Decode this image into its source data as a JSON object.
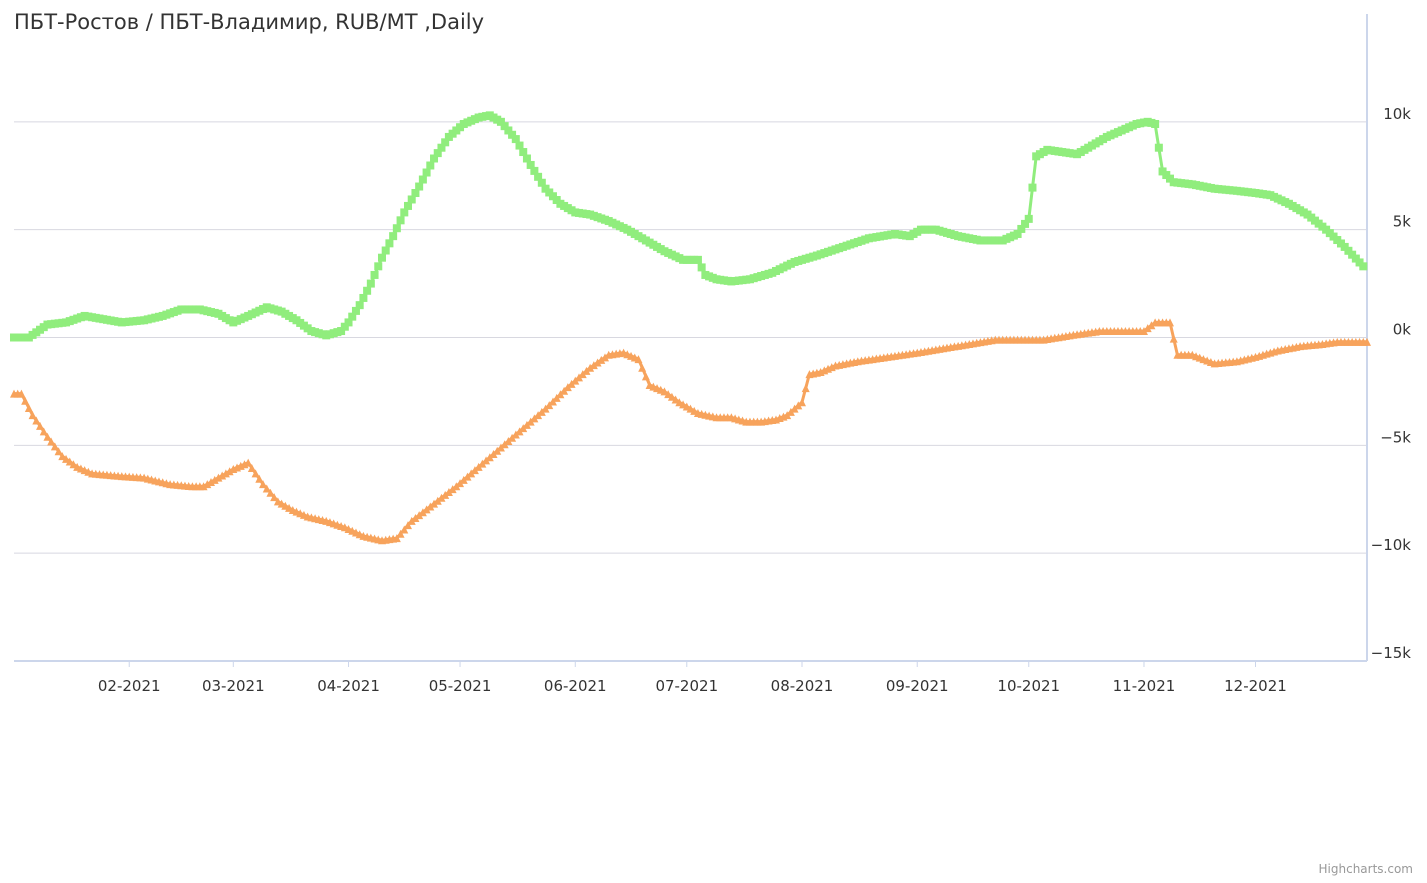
{
  "title": "ПБТ-Ростов / ПБТ-Владимир, RUB/MT ,Daily",
  "credits": "Highcharts.com",
  "colors": {
    "price": "#7cb5ec",
    "upper_band": "#90ed7d",
    "lower_band": "#f7a35c",
    "moving_average": "#434348",
    "grid": "#d8d8e0",
    "axis_line": "#ccd6eb",
    "text": "#333333"
  },
  "chart_data": {
    "type": "line",
    "title": "ПБТ-Ростов / ПБТ-Владимир, RUB/MT ,Daily",
    "xlabel": "",
    "ylabel": "",
    "x_range": [
      "2021-01-01",
      "2021-12-31"
    ],
    "x_ticks": [
      "02-2021",
      "03-2021",
      "04-2021",
      "05-2021",
      "06-2021",
      "07-2021",
      "08-2021",
      "09-2021",
      "10-2021",
      "11-2021",
      "12-2021"
    ],
    "ylim": [
      -15000,
      15000
    ],
    "y_ticks": [
      -15000,
      -10000,
      -5000,
      0,
      5000,
      10000
    ],
    "y_tick_labels": [
      "−15k",
      "−10k",
      "−5k",
      "0k",
      "5k",
      "10k"
    ],
    "y_axis_side": "right",
    "grid": true,
    "legend": "none",
    "series": [
      {
        "key": "upper",
        "marker": "square",
        "points": [
          [
            "2021-01-01",
            0
          ],
          [
            "2021-01-05",
            0
          ],
          [
            "2021-01-10",
            600
          ],
          [
            "2021-01-15",
            700
          ],
          [
            "2021-01-20",
            1000
          ],
          [
            "2021-01-25",
            850
          ],
          [
            "2021-01-30",
            700
          ],
          [
            "2021-02-05",
            800
          ],
          [
            "2021-02-10",
            1000
          ],
          [
            "2021-02-15",
            1300
          ],
          [
            "2021-02-20",
            1300
          ],
          [
            "2021-02-25",
            1100
          ],
          [
            "2021-03-01",
            700
          ],
          [
            "2021-03-05",
            1000
          ],
          [
            "2021-03-10",
            1400
          ],
          [
            "2021-03-14",
            1200
          ],
          [
            "2021-03-18",
            800
          ],
          [
            "2021-03-22",
            300
          ],
          [
            "2021-03-26",
            100
          ],
          [
            "2021-03-30",
            300
          ],
          [
            "2021-04-01",
            700
          ],
          [
            "2021-04-04",
            1500
          ],
          [
            "2021-04-07",
            2500
          ],
          [
            "2021-04-10",
            3700
          ],
          [
            "2021-04-13",
            4700
          ],
          [
            "2021-04-16",
            5800
          ],
          [
            "2021-04-20",
            7000
          ],
          [
            "2021-04-24",
            8300
          ],
          [
            "2021-04-28",
            9300
          ],
          [
            "2021-05-02",
            9900
          ],
          [
            "2021-05-06",
            10200
          ],
          [
            "2021-05-09",
            10300
          ],
          [
            "2021-05-12",
            10000
          ],
          [
            "2021-05-16",
            9200
          ],
          [
            "2021-05-20",
            8000
          ],
          [
            "2021-05-24",
            6900
          ],
          [
            "2021-05-28",
            6200
          ],
          [
            "2021-06-01",
            5800
          ],
          [
            "2021-06-05",
            5700
          ],
          [
            "2021-06-10",
            5400
          ],
          [
            "2021-06-15",
            5000
          ],
          [
            "2021-06-20",
            4500
          ],
          [
            "2021-06-25",
            4000
          ],
          [
            "2021-06-30",
            3600
          ],
          [
            "2021-07-04",
            3600
          ],
          [
            "2021-07-06",
            2900
          ],
          [
            "2021-07-09",
            2700
          ],
          [
            "2021-07-13",
            2600
          ],
          [
            "2021-07-18",
            2700
          ],
          [
            "2021-07-24",
            3000
          ],
          [
            "2021-07-30",
            3500
          ],
          [
            "2021-08-05",
            3800
          ],
          [
            "2021-08-12",
            4200
          ],
          [
            "2021-08-19",
            4600
          ],
          [
            "2021-08-26",
            4800
          ],
          [
            "2021-08-30",
            4700
          ],
          [
            "2021-09-02",
            5000
          ],
          [
            "2021-09-06",
            5000
          ],
          [
            "2021-09-12",
            4700
          ],
          [
            "2021-09-18",
            4500
          ],
          [
            "2021-09-24",
            4500
          ],
          [
            "2021-09-28",
            4800
          ],
          [
            "2021-10-01",
            5500
          ],
          [
            "2021-10-03",
            8400
          ],
          [
            "2021-10-06",
            8700
          ],
          [
            "2021-10-10",
            8600
          ],
          [
            "2021-10-14",
            8500
          ],
          [
            "2021-10-18",
            8900
          ],
          [
            "2021-10-22",
            9300
          ],
          [
            "2021-10-26",
            9600
          ],
          [
            "2021-10-30",
            9900
          ],
          [
            "2021-11-02",
            10000
          ],
          [
            "2021-11-04",
            9900
          ],
          [
            "2021-11-06",
            7700
          ],
          [
            "2021-11-09",
            7200
          ],
          [
            "2021-11-14",
            7100
          ],
          [
            "2021-11-20",
            6900
          ],
          [
            "2021-11-26",
            6800
          ],
          [
            "2021-12-01",
            6700
          ],
          [
            "2021-12-05",
            6600
          ],
          [
            "2021-12-10",
            6200
          ],
          [
            "2021-12-15",
            5700
          ],
          [
            "2021-12-20",
            5000
          ],
          [
            "2021-12-25",
            4200
          ],
          [
            "2021-12-30",
            3300
          ]
        ]
      },
      {
        "key": "lower",
        "marker": "triangle",
        "points": [
          [
            "2021-01-01",
            -2600
          ],
          [
            "2021-01-03",
            -2600
          ],
          [
            "2021-01-06",
            -3600
          ],
          [
            "2021-01-10",
            -4600
          ],
          [
            "2021-01-14",
            -5500
          ],
          [
            "2021-01-18",
            -6000
          ],
          [
            "2021-01-22",
            -6300
          ],
          [
            "2021-01-28",
            -6400
          ],
          [
            "2021-02-05",
            -6500
          ],
          [
            "2021-02-12",
            -6800
          ],
          [
            "2021-02-18",
            -6900
          ],
          [
            "2021-02-21",
            -6900
          ],
          [
            "2021-02-25",
            -6500
          ],
          [
            "2021-03-01",
            -6100
          ],
          [
            "2021-03-05",
            -5800
          ],
          [
            "2021-03-09",
            -6800
          ],
          [
            "2021-03-13",
            -7600
          ],
          [
            "2021-03-17",
            -8000
          ],
          [
            "2021-03-21",
            -8300
          ],
          [
            "2021-03-26",
            -8500
          ],
          [
            "2021-03-31",
            -8800
          ],
          [
            "2021-04-05",
            -9200
          ],
          [
            "2021-04-10",
            -9400
          ],
          [
            "2021-04-14",
            -9300
          ],
          [
            "2021-04-18",
            -8500
          ],
          [
            "2021-04-24",
            -7700
          ],
          [
            "2021-04-30",
            -6900
          ],
          [
            "2021-05-06",
            -6000
          ],
          [
            "2021-05-12",
            -5100
          ],
          [
            "2021-05-18",
            -4200
          ],
          [
            "2021-05-24",
            -3300
          ],
          [
            "2021-05-30",
            -2300
          ],
          [
            "2021-06-05",
            -1400
          ],
          [
            "2021-06-10",
            -800
          ],
          [
            "2021-06-14",
            -700
          ],
          [
            "2021-06-18",
            -1000
          ],
          [
            "2021-06-21",
            -2200
          ],
          [
            "2021-06-25",
            -2500
          ],
          [
            "2021-06-29",
            -3000
          ],
          [
            "2021-07-04",
            -3500
          ],
          [
            "2021-07-09",
            -3700
          ],
          [
            "2021-07-13",
            -3700
          ],
          [
            "2021-07-17",
            -3900
          ],
          [
            "2021-07-21",
            -3900
          ],
          [
            "2021-07-25",
            -3800
          ],
          [
            "2021-07-28",
            -3600
          ],
          [
            "2021-08-01",
            -3000
          ],
          [
            "2021-08-03",
            -1700
          ],
          [
            "2021-08-06",
            -1600
          ],
          [
            "2021-08-10",
            -1300
          ],
          [
            "2021-08-16",
            -1100
          ],
          [
            "2021-08-24",
            -900
          ],
          [
            "2021-09-01",
            -700
          ],
          [
            "2021-09-08",
            -500
          ],
          [
            "2021-09-15",
            -300
          ],
          [
            "2021-09-22",
            -100
          ],
          [
            "2021-09-30",
            -100
          ],
          [
            "2021-10-05",
            -100
          ],
          [
            "2021-10-12",
            100
          ],
          [
            "2021-10-20",
            300
          ],
          [
            "2021-10-27",
            300
          ],
          [
            "2021-11-01",
            300
          ],
          [
            "2021-11-04",
            700
          ],
          [
            "2021-11-08",
            700
          ],
          [
            "2021-11-10",
            -800
          ],
          [
            "2021-11-14",
            -800
          ],
          [
            "2021-11-20",
            -1200
          ],
          [
            "2021-11-26",
            -1100
          ],
          [
            "2021-12-01",
            -900
          ],
          [
            "2021-12-07",
            -600
          ],
          [
            "2021-12-13",
            -400
          ],
          [
            "2021-12-19",
            -300
          ],
          [
            "2021-12-23",
            -200
          ],
          [
            "2021-12-31",
            -200
          ]
        ]
      }
    ]
  }
}
